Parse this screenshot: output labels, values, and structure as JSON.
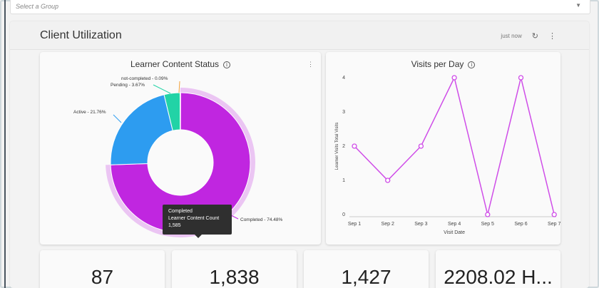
{
  "group_select": {
    "placeholder": "Select a Group"
  },
  "section": {
    "title": "Client Utilization",
    "updated": "just now"
  },
  "donut_card": {
    "title": "Learner Content Status",
    "tooltip": {
      "line1": "Completed",
      "line2": "Learner Content Count",
      "line3": "1,585"
    }
  },
  "line_card": {
    "title": "Visits per Day"
  },
  "stats": [
    "87",
    "1,838",
    "1,427",
    "2208.02 H..."
  ],
  "colors": {
    "purple": "#c026e0",
    "blue": "#2d9cf0",
    "teal": "#22d3a6",
    "line": "#cf4de8"
  },
  "chart_data": [
    {
      "type": "pie",
      "title": "Learner Content Status",
      "labels": [
        "Completed",
        "Active",
        "Pending",
        "not-completed"
      ],
      "values": [
        74.48,
        21.76,
        3.67,
        0.09
      ],
      "slice_labels": [
        "Completed - 74.48%",
        "Active - 21.76%",
        "Pending - 3.67%",
        "not-completed - 0.09%"
      ],
      "colors": [
        "#c026e0",
        "#2d9cf0",
        "#22d3a6",
        "#f2a23c"
      ]
    },
    {
      "type": "line",
      "title": "Visits per Day",
      "xlabel": "Visit Date",
      "ylabel": "Learner Visits Total Visits",
      "categories": [
        "Sep 1",
        "Sep 2",
        "Sep 3",
        "Sep 4",
        "Sep 5",
        "Sep 6",
        "Sep 7"
      ],
      "values": [
        2,
        1,
        2,
        4,
        0,
        4,
        0
      ],
      "yticks": [
        "0",
        "1",
        "2",
        "3",
        "4"
      ],
      "ylim": [
        0,
        4
      ],
      "grid": false
    }
  ]
}
